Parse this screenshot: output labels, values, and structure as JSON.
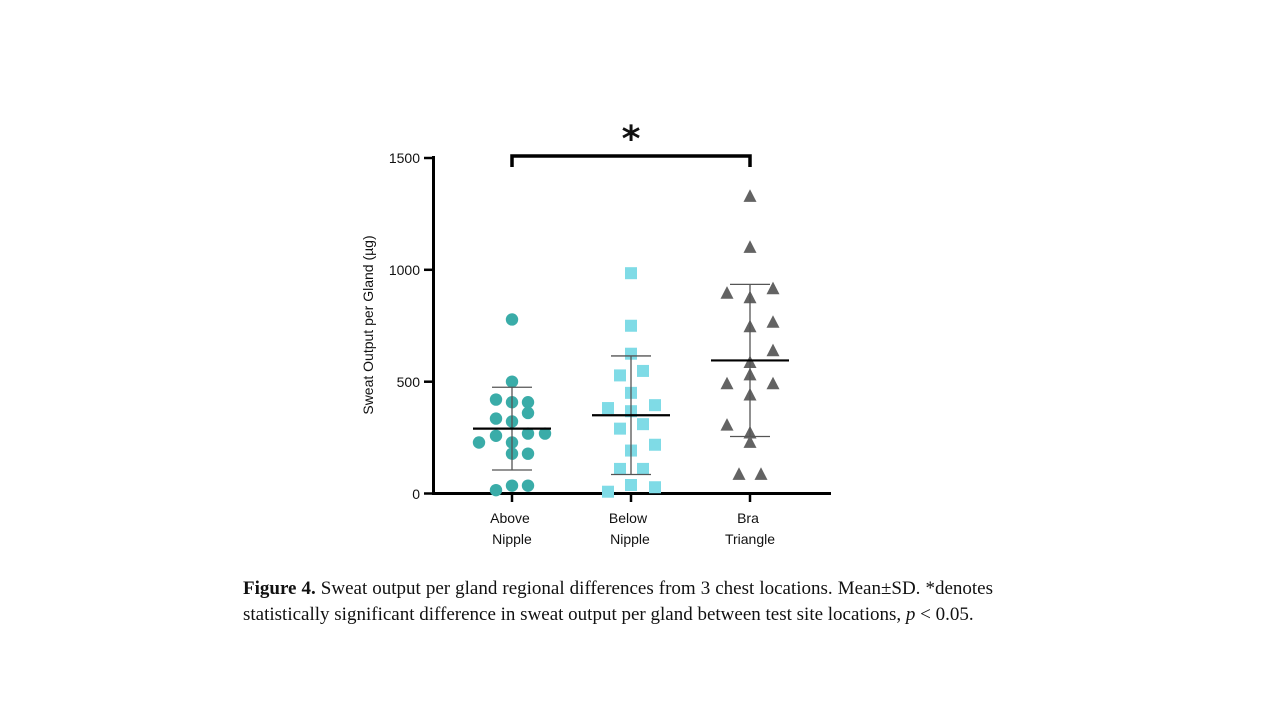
{
  "chart_data": {
    "type": "scatter",
    "ylabel": "Sweat Output per Gland (µg)",
    "ylim": [
      0,
      1500
    ],
    "yticks": [
      "0",
      "500",
      "1000",
      "1500"
    ],
    "categories": [
      {
        "line1": "Above",
        "line2": "Nipple"
      },
      {
        "line1": "Below",
        "line2": "Nipple"
      },
      {
        "line1": "Bra",
        "line2": "Triangle"
      }
    ],
    "series": [
      {
        "category": "Above Nipple",
        "marker": "circle",
        "color": "#3aaca8",
        "mean": 290,
        "sd": 185,
        "points": [
          {
            "dx": 0,
            "y": 778
          },
          {
            "dx": 0,
            "y": 500
          },
          {
            "dx": -16,
            "y": 420
          },
          {
            "dx": 0,
            "y": 408
          },
          {
            "dx": 16,
            "y": 408
          },
          {
            "dx": 16,
            "y": 360
          },
          {
            "dx": -16,
            "y": 335
          },
          {
            "dx": 0,
            "y": 322
          },
          {
            "dx": 16,
            "y": 268
          },
          {
            "dx": 33,
            "y": 268
          },
          {
            "dx": -16,
            "y": 258
          },
          {
            "dx": -33,
            "y": 228
          },
          {
            "dx": 0,
            "y": 228
          },
          {
            "dx": 0,
            "y": 178
          },
          {
            "dx": 16,
            "y": 178
          },
          {
            "dx": 0,
            "y": 35
          },
          {
            "dx": 16,
            "y": 35
          },
          {
            "dx": -16,
            "y": 15
          }
        ]
      },
      {
        "category": "Below Nipple",
        "marker": "square",
        "color": "#7fdbe6",
        "mean": 350,
        "sd": 265,
        "points": [
          {
            "dx": 0,
            "y": 985
          },
          {
            "dx": 0,
            "y": 750
          },
          {
            "dx": 0,
            "y": 625
          },
          {
            "dx": 12,
            "y": 548
          },
          {
            "dx": -11,
            "y": 528
          },
          {
            "dx": 0,
            "y": 450
          },
          {
            "dx": 24,
            "y": 395
          },
          {
            "dx": -23,
            "y": 382
          },
          {
            "dx": 0,
            "y": 368
          },
          {
            "dx": 12,
            "y": 310
          },
          {
            "dx": -11,
            "y": 290
          },
          {
            "dx": 24,
            "y": 218
          },
          {
            "dx": 0,
            "y": 192
          },
          {
            "dx": 12,
            "y": 110
          },
          {
            "dx": -11,
            "y": 110
          },
          {
            "dx": 0,
            "y": 38
          },
          {
            "dx": 24,
            "y": 28
          },
          {
            "dx": -23,
            "y": 8
          }
        ]
      },
      {
        "category": "Bra Triangle",
        "marker": "triangle",
        "color": "#636363",
        "mean": 595,
        "sd": 340,
        "points": [
          {
            "dx": 0,
            "y": 1328
          },
          {
            "dx": 0,
            "y": 1100
          },
          {
            "dx": 23,
            "y": 915
          },
          {
            "dx": -23,
            "y": 895
          },
          {
            "dx": 0,
            "y": 875
          },
          {
            "dx": 23,
            "y": 765
          },
          {
            "dx": 0,
            "y": 745
          },
          {
            "dx": 23,
            "y": 638
          },
          {
            "dx": 0,
            "y": 585
          },
          {
            "dx": 0,
            "y": 530
          },
          {
            "dx": 23,
            "y": 490
          },
          {
            "dx": -23,
            "y": 490
          },
          {
            "dx": 0,
            "y": 440
          },
          {
            "dx": -23,
            "y": 305
          },
          {
            "dx": 0,
            "y": 270
          },
          {
            "dx": 0,
            "y": 228
          },
          {
            "dx": -11,
            "y": 85
          },
          {
            "dx": 11,
            "y": 85
          }
        ]
      }
    ],
    "significance": {
      "from": "Above Nipple",
      "to": "Bra Triangle",
      "label": "*"
    }
  },
  "caption": {
    "label": "Figure 4.",
    "text1": " Sweat output per gland regional differences from 3 chest locations. Mean±SD. *denotes statistically significant difference in sweat output per gland between test site locations, ",
    "p": "p",
    "text2": " < 0.05."
  }
}
